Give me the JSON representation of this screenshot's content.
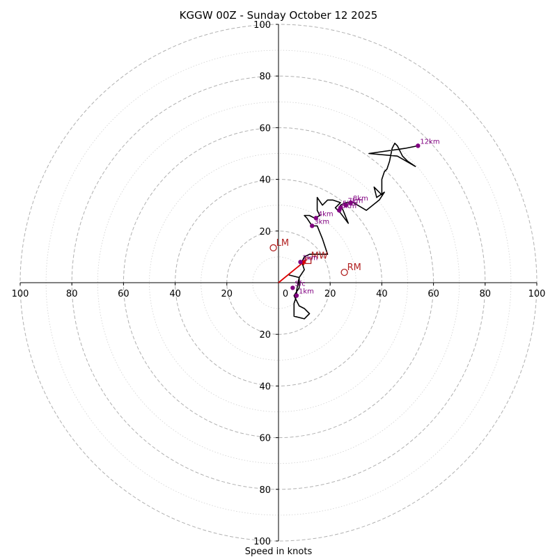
{
  "chart_data": {
    "type": "hodograph",
    "title": "KGGW 00Z - Sunday October 12 2025",
    "xlabel": "Speed in knots",
    "range": [
      -100,
      100
    ],
    "ring_major_step": 20,
    "ring_minor_step": 10,
    "tick_labels": {
      "x": [
        {
          "v": -100,
          "label": "100"
        },
        {
          "v": -80,
          "label": "80"
        },
        {
          "v": -60,
          "label": "60"
        },
        {
          "v": -40,
          "label": "40"
        },
        {
          "v": -20,
          "label": "20"
        },
        {
          "v": 0,
          "label": "0"
        },
        {
          "v": 20,
          "label": "20"
        },
        {
          "v": 40,
          "label": "40"
        },
        {
          "v": 60,
          "label": "60"
        },
        {
          "v": 80,
          "label": "80"
        },
        {
          "v": 100,
          "label": "100"
        }
      ],
      "y": [
        {
          "v": 100,
          "label": "100"
        },
        {
          "v": 80,
          "label": "80"
        },
        {
          "v": 60,
          "label": "60"
        },
        {
          "v": 40,
          "label": "40"
        },
        {
          "v": 20,
          "label": "20"
        },
        {
          "v": -20,
          "label": "20"
        },
        {
          "v": -40,
          "label": "40"
        },
        {
          "v": -60,
          "label": "60"
        },
        {
          "v": -80,
          "label": "80"
        },
        {
          "v": -100,
          "label": "100"
        }
      ]
    },
    "trace": [
      [
        4,
        3
      ],
      [
        8,
        2
      ],
      [
        8,
        -2
      ],
      [
        6,
        -5
      ],
      [
        7,
        -7
      ],
      [
        8,
        -9
      ],
      [
        10,
        -10
      ],
      [
        12,
        -12
      ],
      [
        10,
        -14
      ],
      [
        6,
        -13
      ],
      [
        6,
        -12
      ],
      [
        6,
        -8
      ],
      [
        7,
        -5
      ],
      [
        7,
        -3
      ],
      [
        8,
        2
      ],
      [
        10,
        5
      ],
      [
        9,
        8
      ],
      [
        10,
        10
      ],
      [
        12,
        11
      ],
      [
        19,
        11
      ],
      [
        17,
        17
      ],
      [
        15,
        22
      ],
      [
        13,
        22
      ],
      [
        11,
        25
      ],
      [
        10,
        26
      ],
      [
        12,
        26
      ],
      [
        14,
        25
      ],
      [
        16,
        26
      ],
      [
        15,
        28
      ],
      [
        15,
        33
      ],
      [
        17,
        30
      ],
      [
        19,
        32
      ],
      [
        21,
        32
      ],
      [
        24,
        31
      ],
      [
        22,
        29
      ],
      [
        24,
        27
      ],
      [
        27,
        23
      ],
      [
        25,
        28
      ],
      [
        24,
        30
      ],
      [
        26,
        31
      ],
      [
        29,
        31
      ],
      [
        34,
        28
      ],
      [
        39,
        32
      ],
      [
        41,
        35
      ],
      [
        38,
        33
      ],
      [
        37,
        37
      ],
      [
        40,
        34
      ],
      [
        40,
        40
      ],
      [
        41,
        43
      ],
      [
        42,
        44
      ],
      [
        43,
        47
      ],
      [
        44,
        52
      ],
      [
        45,
        54
      ],
      [
        46,
        53
      ],
      [
        48,
        49
      ],
      [
        50,
        47
      ],
      [
        53,
        45
      ],
      [
        46,
        49
      ],
      [
        35,
        50
      ],
      [
        49,
        52
      ],
      [
        54,
        53
      ]
    ],
    "height_markers": [
      {
        "label": "Sfc",
        "u": 5.5,
        "v": -2
      },
      {
        "label": "1km",
        "u": 7,
        "v": -5
      },
      {
        "label": "2km",
        "u": 8.5,
        "v": 8
      },
      {
        "label": "3km",
        "u": 13,
        "v": 22
      },
      {
        "label": "4km",
        "u": 14.5,
        "v": 25
      },
      {
        "label": "5km",
        "u": 24,
        "v": 29
      },
      {
        "label": "6km",
        "u": 23.5,
        "v": 28
      },
      {
        "label": "7km",
        "u": 26,
        "v": 30
      },
      {
        "label": "8km",
        "u": 28,
        "v": 31
      },
      {
        "label": "12km",
        "u": 54,
        "v": 53
      }
    ],
    "motion_markers": [
      {
        "label": "LM",
        "u": -2,
        "v": 13.5,
        "shape": "circle"
      },
      {
        "label": "RM",
        "u": 25.5,
        "v": 4,
        "shape": "circle"
      },
      {
        "label": "MW",
        "u": 11.5,
        "v": 8.5,
        "shape": "square"
      }
    ],
    "shear_vector": {
      "from": [
        0,
        0
      ],
      "to": [
        11,
        9
      ]
    },
    "colors": {
      "trace": "#000000",
      "height_markers": "#800080",
      "motion_markers": "#b22222",
      "shear_vector": "#dd0000",
      "grid": "#b0b0b0"
    }
  }
}
